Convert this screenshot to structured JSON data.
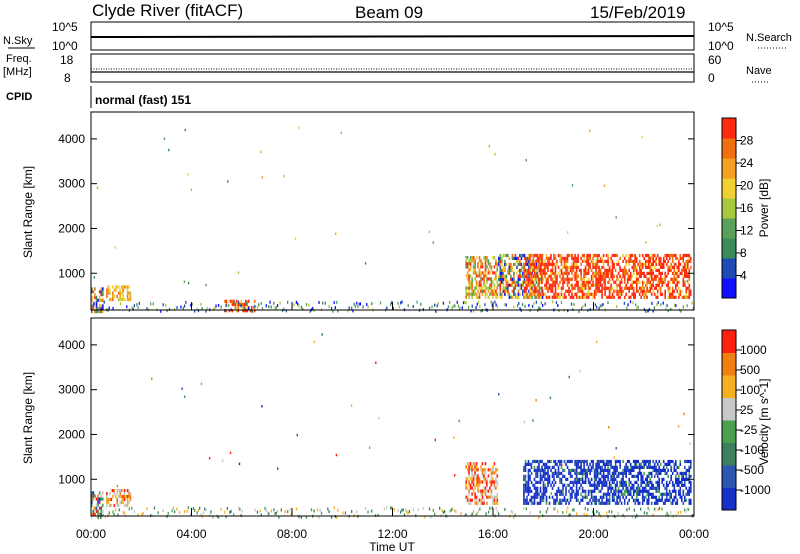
{
  "header": {
    "station": "Clyde River (fitACF)",
    "beam": "Beam 09",
    "date": "15/Feb/2019"
  },
  "top_panels": {
    "nsky_label": "N.Sky",
    "nsky_ticks": [
      "10^5",
      "10^0"
    ],
    "nsearch_label": "N.Search",
    "nsearch_ticks": [
      "10^5",
      "10^0"
    ],
    "freq_label": "Freq.",
    "freq_unit": "[MHz]",
    "freq_ticks": [
      "18",
      "8"
    ],
    "nave_label": "Nave",
    "nave_ticks": [
      "60",
      "0"
    ],
    "cpid_label": "CPID",
    "cpid_value": "normal (fast) 151"
  },
  "chart_data": [
    {
      "type": "heatmap",
      "name": "power",
      "ylabel": "Slant Range [km]",
      "yticks": [
        "4000",
        "3000",
        "2000",
        "1000"
      ],
      "ylim": [
        180,
        4600
      ],
      "xlim": [
        0,
        24
      ],
      "colorbar_label": "Power [dB]",
      "colorbar_ticks": [
        "28",
        "24",
        "20",
        "16",
        "12",
        "8",
        "4"
      ],
      "colors": [
        "#1010ff",
        "#1f4bb5",
        "#3c8c5a",
        "#5aa05a",
        "#a8c83c",
        "#f0d030",
        "#f5a020",
        "#f07010",
        "#ff2a10"
      ],
      "regions": [
        {
          "t": [
            0.0,
            0.5
          ],
          "r": [
            180,
            750
          ],
          "level": "mixed"
        },
        {
          "t": [
            0.6,
            1.6
          ],
          "r": [
            450,
            800
          ],
          "level": "mid"
        },
        {
          "t": [
            5.3,
            6.6
          ],
          "r": [
            200,
            480
          ],
          "level": "high"
        },
        {
          "t": [
            14.9,
            16.2
          ],
          "r": [
            500,
            1450
          ],
          "level": "mid-high"
        },
        {
          "t": [
            16.2,
            18.0
          ],
          "r": [
            500,
            1500
          ],
          "level": "mixed"
        },
        {
          "t": [
            17.2,
            23.9
          ],
          "r": [
            500,
            1500
          ],
          "level": "high"
        }
      ]
    },
    {
      "type": "heatmap",
      "name": "velocity",
      "ylabel": "Slant Range [km]",
      "yticks": [
        "4000",
        "3000",
        "2000",
        "1000"
      ],
      "ylim": [
        180,
        4600
      ],
      "xlim": [
        0,
        24
      ],
      "xticks": [
        "00:00",
        "04:00",
        "08:00",
        "12:00",
        "16:00",
        "20:00",
        "00:00"
      ],
      "xlabel": "Time UT",
      "colorbar_label": "Velocity [m s^-1]",
      "colorbar_ticks": [
        "1000",
        "500",
        "100",
        "25",
        "-25",
        "-100",
        "-500",
        "-1000"
      ],
      "colors": [
        "#1530c8",
        "#2e55b0",
        "#3c8060",
        "#4aa050",
        "#c8c8c8",
        "#f5b020",
        "#f08010",
        "#ff2010"
      ],
      "regions": [
        {
          "t": [
            0.0,
            0.5
          ],
          "r": [
            180,
            800
          ],
          "level": "mixed"
        },
        {
          "t": [
            0.6,
            1.6
          ],
          "r": [
            450,
            850
          ],
          "level": "negative"
        },
        {
          "t": [
            14.9,
            16.2
          ],
          "r": [
            500,
            1450
          ],
          "level": "negative"
        },
        {
          "t": [
            17.2,
            23.9
          ],
          "r": [
            500,
            1500
          ],
          "level": "positive"
        }
      ]
    }
  ]
}
